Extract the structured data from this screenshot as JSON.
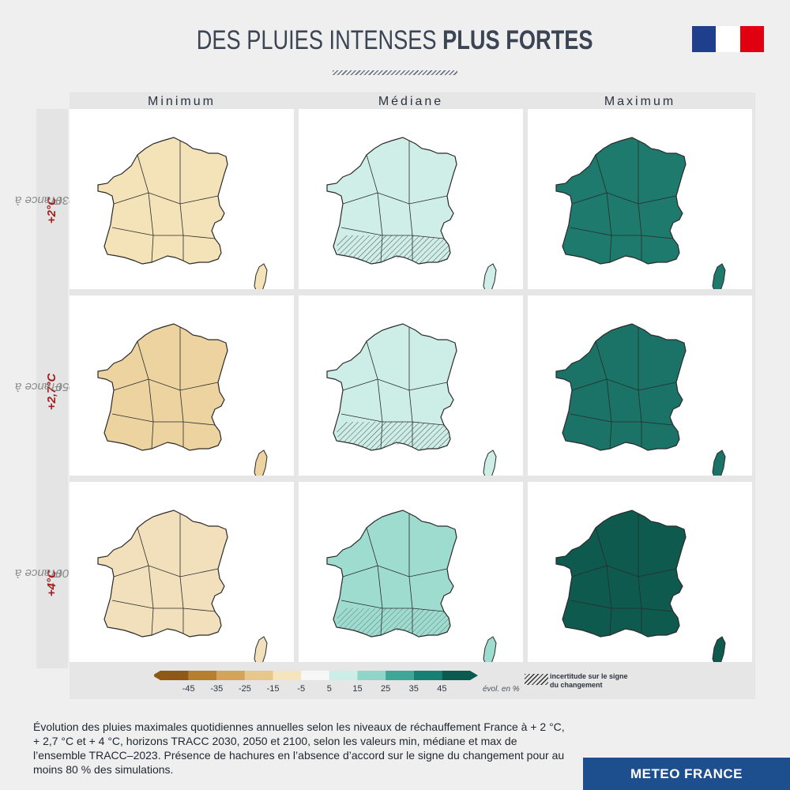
{
  "title": {
    "light": "DES PLUIES INTENSES ",
    "bold": "PLUS FORTES"
  },
  "columns": [
    "Minimum",
    "Médiane",
    "Maximum"
  ],
  "rows": [
    {
      "prefix": "France à ",
      "warming": "+2°C",
      "suffix": " | 2030"
    },
    {
      "prefix": "France à ",
      "warming": "+2,7°C",
      "suffix": " | 2050"
    },
    {
      "prefix": "France à ",
      "warming": "+4°C",
      "suffix": " | 2100"
    }
  ],
  "map_colors": {
    "Minimum": [
      "#f4e2b8",
      "#ecd3a0",
      "#f2e0bc"
    ],
    "Médiane": [
      "#cfeee7",
      "#cdeee6",
      "#9fdcd0"
    ],
    "Maximum": [
      "#1d7a6c",
      "#1a7366",
      "#0f5a4e"
    ]
  },
  "legend": {
    "ticks": [
      "-45",
      "-35",
      "-25",
      "-15",
      "-5",
      "5",
      "15",
      "25",
      "35",
      "45"
    ],
    "unit": "évol. en %",
    "hatch_label_1": "incertitude sur le signe",
    "hatch_label_2": "du changement",
    "colors": [
      "#8c5a14",
      "#b77e2e",
      "#d2a55a",
      "#e6c88a",
      "#f4e4bf",
      "#f7f7f7",
      "#cdeee8",
      "#8fd6c8",
      "#3fa796",
      "#168072",
      "#0a5a4f"
    ]
  },
  "caption": "Évolution des pluies maximales quotidiennes annuelles selon les niveaux de réchauffement France à + 2 °C, + 2,7 °C et + 4 °C, horizons TRACC 2030, 2050 et 2100, selon les valeurs min, médiane et max de l’ensemble TRACC–2023. Présence de hachures en l’absence d’accord sur le signe du changement pour au moins 80 % des simulations.",
  "brand": "METEO FRANCE",
  "flag_colors": [
    "#1f3e8c",
    "#ffffff",
    "#e1000f"
  ]
}
